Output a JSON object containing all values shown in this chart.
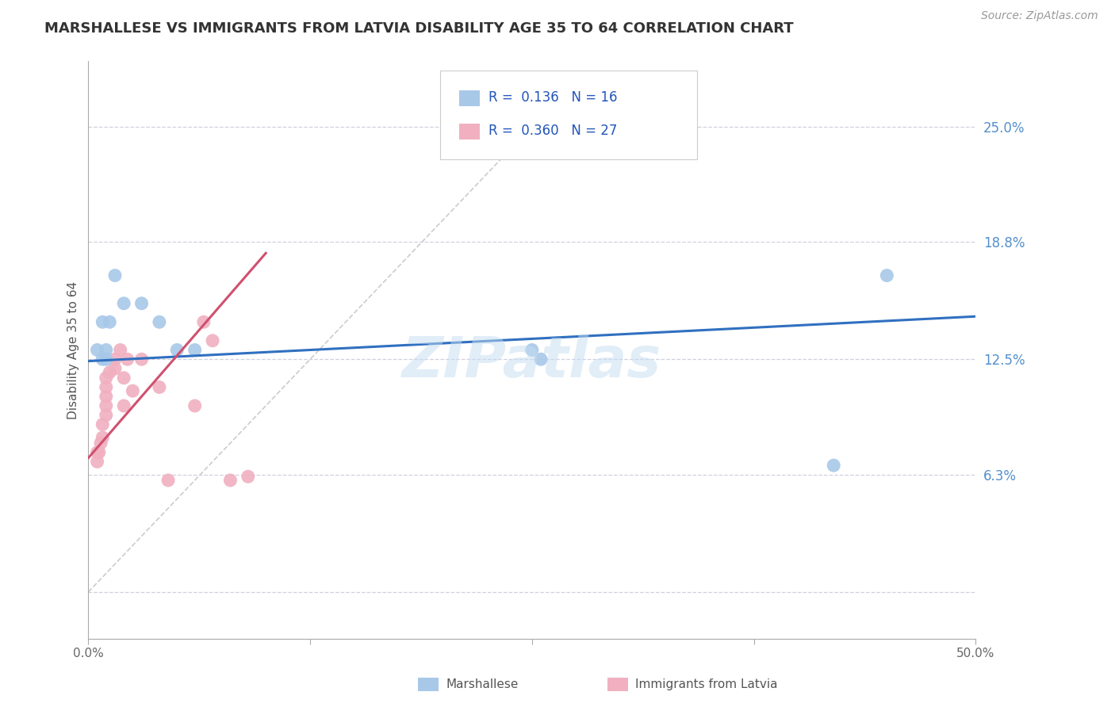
{
  "title": "MARSHALLESE VS IMMIGRANTS FROM LATVIA DISABILITY AGE 35 TO 64 CORRELATION CHART",
  "source": "Source: ZipAtlas.com",
  "ylabel": "Disability Age 35 to 64",
  "xlim": [
    0.0,
    0.5
  ],
  "ylim": [
    -0.025,
    0.285
  ],
  "ytick_positions": [
    0.0,
    0.063,
    0.125,
    0.188,
    0.25
  ],
  "ytick_labels": [
    "",
    "6.3%",
    "12.5%",
    "18.8%",
    "25.0%"
  ],
  "blue_R": "0.136",
  "blue_N": "16",
  "pink_R": "0.360",
  "pink_N": "27",
  "blue_color": "#a8c8e8",
  "pink_color": "#f0b0c0",
  "blue_line_color": "#3070c0",
  "pink_line_color": "#d05070",
  "ref_line_color": "#cccccc",
  "grid_color": "#d0d0e0",
  "background_color": "#ffffff",
  "watermark": "ZIPatlas",
  "blue_x": [
    0.005,
    0.008,
    0.008,
    0.01,
    0.01,
    0.012,
    0.015,
    0.02,
    0.03,
    0.04,
    0.05,
    0.06,
    0.25,
    0.255,
    0.42,
    0.45
  ],
  "blue_y": [
    0.13,
    0.145,
    0.125,
    0.13,
    0.125,
    0.145,
    0.17,
    0.155,
    0.155,
    0.145,
    0.13,
    0.13,
    0.13,
    0.125,
    0.068,
    0.17
  ],
  "pink_x": [
    0.005,
    0.005,
    0.006,
    0.007,
    0.008,
    0.008,
    0.01,
    0.01,
    0.01,
    0.01,
    0.01,
    0.012,
    0.015,
    0.015,
    0.018,
    0.02,
    0.02,
    0.022,
    0.025,
    0.03,
    0.04,
    0.045,
    0.06,
    0.065,
    0.07,
    0.08,
    0.09
  ],
  "pink_y": [
    0.07,
    0.075,
    0.075,
    0.08,
    0.083,
    0.09,
    0.095,
    0.1,
    0.105,
    0.11,
    0.115,
    0.118,
    0.12,
    0.125,
    0.13,
    0.115,
    0.1,
    0.125,
    0.108,
    0.125,
    0.11,
    0.06,
    0.1,
    0.145,
    0.135,
    0.06,
    0.062
  ],
  "blue_line_x": [
    0.0,
    0.5
  ],
  "blue_line_y": [
    0.124,
    0.148
  ],
  "pink_line_x": [
    0.0,
    0.1
  ],
  "pink_line_y": [
    0.072,
    0.182
  ],
  "ref_line_x": [
    0.0,
    0.265
  ],
  "ref_line_y": [
    0.0,
    0.265
  ]
}
